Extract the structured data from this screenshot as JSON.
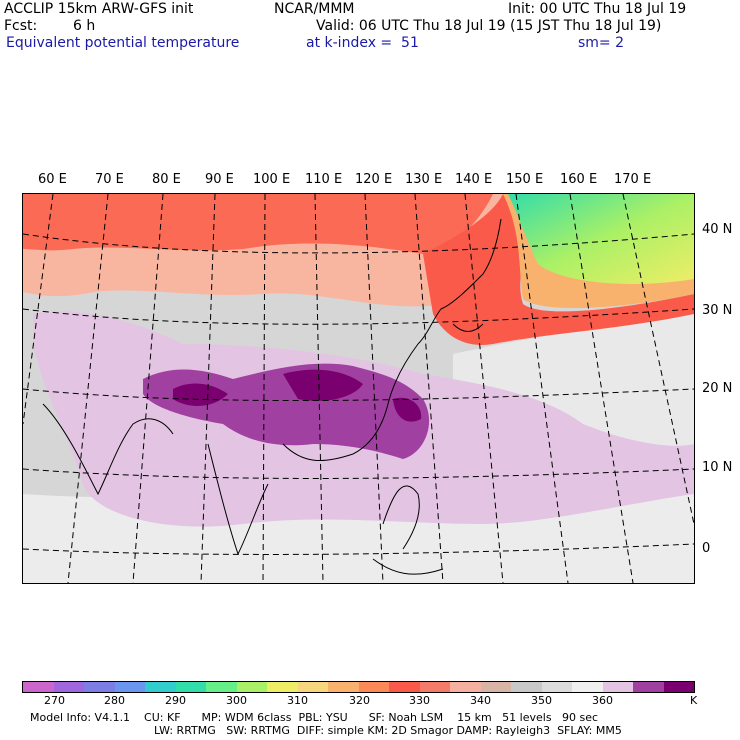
{
  "header": {
    "model_title": "ACCLIP 15km ARW-GFS init",
    "org": "NCAR/MMM",
    "init": "Init: 00 UTC Thu 18 Jul 19",
    "fcst_label": "Fcst:",
    "fcst_value": "6 h",
    "valid": "Valid: 06 UTC Thu 18 Jul 19 (15 JST Thu 18 Jul 19)",
    "field_name": "Equivalent potential temperature",
    "level": "at k-index =  51",
    "smoothing": "sm= 2"
  },
  "map": {
    "longitude_labels": [
      "60 E",
      "70 E",
      "80 E",
      "90 E",
      "100 E",
      "110 E",
      "120 E",
      "130 E",
      "140 E",
      "150 E",
      "160 E",
      "170 E"
    ],
    "latitude_labels": [
      "40 N",
      "30 N",
      "20 N",
      "10 N",
      "0"
    ]
  },
  "colorbar": {
    "colors": [
      "#cc66cc",
      "#a066dd",
      "#7d7de6",
      "#6a96f0",
      "#33cccc",
      "#33ddaa",
      "#66ee88",
      "#aaf066",
      "#eeee66",
      "#f6d77e",
      "#f8b26e",
      "#fb8a58",
      "#fa5a4a",
      "#f37b6a",
      "#f6b0a0",
      "#d8b4a4",
      "#c8c8c8",
      "#dcdcdc",
      "#f0f0f0",
      "#e3c4e3",
      "#a040a0",
      "#7a006f"
    ],
    "tick_labels": [
      "270",
      "280",
      "290",
      "300",
      "310",
      "320",
      "330",
      "340",
      "350",
      "360"
    ],
    "unit": "K"
  },
  "footer": {
    "line1": "Model Info: V4.1.1    CU: KF      MP: WDM 6class  PBL: YSU      SF: Noah LSM    15 km   51 levels   90 sec",
    "line2": "LW: RRTMG   SW: RRTMG  DIFF: simple KM: 2D Smagor DAMP: Rayleigh3  SFLAY: MM5"
  }
}
